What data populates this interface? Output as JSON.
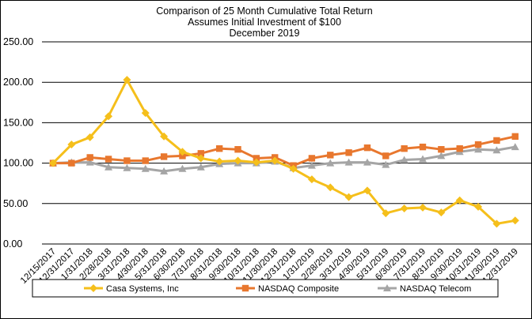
{
  "chart_data": {
    "type": "line",
    "title": [
      "Comparison  of 25 Month Cumulative  Total Return",
      "Assumes Initial Investment  of $100",
      "December  2019"
    ],
    "categories": [
      "12/15/2017",
      "12/31/2017",
      "1/31/2018",
      "2/28/2018",
      "3/31/2018",
      "4/30/2018",
      "5/31/2018",
      "6/30/2018",
      "7/31/2018",
      "8/31/2018",
      "9/30/2018",
      "10/31/2018",
      "11/30/2018",
      "12/31/2018",
      "1/31/2019",
      "2/28/2019",
      "3/31/2019",
      "4/30/2019",
      "5/31/2019",
      "6/30/2019",
      "7/31/2019",
      "8/31/2019",
      "9/30/2019",
      "10/31/2019",
      "11/30/2019",
      "12/31/2019"
    ],
    "y_ticks": [
      "0.00",
      "50.00",
      "100.00",
      "150.00",
      "200.00",
      "250.00"
    ],
    "ylim": [
      0,
      250
    ],
    "grid": true,
    "legend_position": "bottom",
    "series": [
      {
        "name": "Casa Systems, Inc",
        "color": "#F5BF1B",
        "marker": "diamond",
        "values": [
          100,
          123,
          132,
          158,
          203,
          162,
          133,
          114,
          106,
          102,
          103,
          101,
          103,
          93,
          80,
          70,
          58,
          66,
          38,
          44,
          45,
          39,
          54,
          46,
          25,
          29
        ]
      },
      {
        "name": "NASDAQ Composite",
        "color": "#E8772E",
        "marker": "square",
        "values": [
          100,
          100,
          107,
          105,
          103,
          103,
          108,
          109,
          112,
          118,
          117,
          106,
          107,
          97,
          106,
          110,
          113,
          119,
          109,
          118,
          120,
          117,
          118,
          123,
          128,
          133
        ]
      },
      {
        "name": "NASDAQ Telecom",
        "color": "#A5A5A5",
        "marker": "triangle",
        "values": [
          100,
          101,
          101,
          95,
          94,
          93,
          90,
          93,
          95,
          99,
          100,
          100,
          102,
          94,
          97,
          100,
          101,
          101,
          98,
          104,
          105,
          109,
          114,
          117,
          116,
          120
        ]
      }
    ]
  }
}
